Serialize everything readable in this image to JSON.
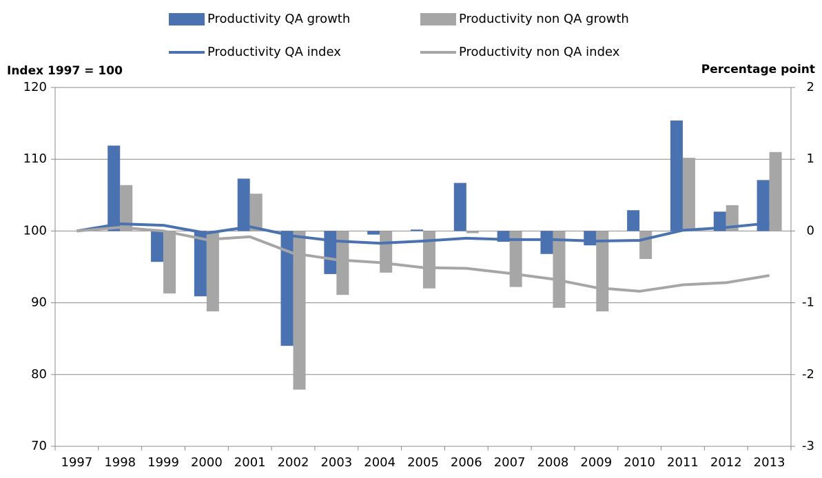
{
  "chart_data": {
    "type": "combo",
    "y_label": "Index 1997 = 100",
    "y2_label": "Percentage point",
    "categories": [
      "1997",
      "1998",
      "1999",
      "2000",
      "2001",
      "2002",
      "2003",
      "2004",
      "2005",
      "2006",
      "2007",
      "2008",
      "2009",
      "2010",
      "2011",
      "2012",
      "2013"
    ],
    "series": [
      {
        "name": "Productivity QA growth",
        "type": "bar",
        "axis": "y2",
        "color": "#4a72b0",
        "values": [
          0,
          1.19,
          -0.43,
          -0.91,
          0.73,
          -1.6,
          -0.6,
          -0.05,
          0.02,
          0.67,
          -0.15,
          -0.32,
          -0.2,
          0.29,
          1.54,
          0.27,
          0.71
        ]
      },
      {
        "name": "Productivity non QA growth",
        "type": "bar",
        "axis": "y2",
        "color": "#a6a6a6",
        "values": [
          0,
          0.64,
          -0.87,
          -1.12,
          0.52,
          -2.21,
          -0.89,
          -0.58,
          -0.8,
          -0.03,
          -0.78,
          -1.07,
          -1.12,
          -0.39,
          1.02,
          0.36,
          1.1
        ]
      },
      {
        "name": "Productivity QA index",
        "type": "line",
        "axis": "y",
        "color": "#4a72b0",
        "values": [
          100,
          101,
          100.8,
          99.7,
          100.6,
          99.3,
          98.6,
          98.3,
          98.6,
          99.0,
          98.8,
          98.8,
          98.6,
          98.7,
          100.1,
          100.5,
          101.1
        ]
      },
      {
        "name": "Productivity non QA index",
        "type": "line",
        "axis": "y",
        "color": "#a6a6a6",
        "values": [
          100,
          100.5,
          100,
          98.8,
          99.2,
          96.9,
          96,
          95.6,
          94.9,
          94.8,
          94.1,
          93.3,
          92.1,
          91.6,
          92.5,
          92.8,
          93.8
        ]
      }
    ],
    "ylim": [
      70,
      120
    ],
    "yticks": [
      70,
      80,
      90,
      100,
      110,
      120
    ],
    "y2lim": [
      -3,
      2
    ],
    "y2ticks": [
      -3,
      -2,
      -1,
      0,
      1,
      2
    ],
    "grid": true
  }
}
